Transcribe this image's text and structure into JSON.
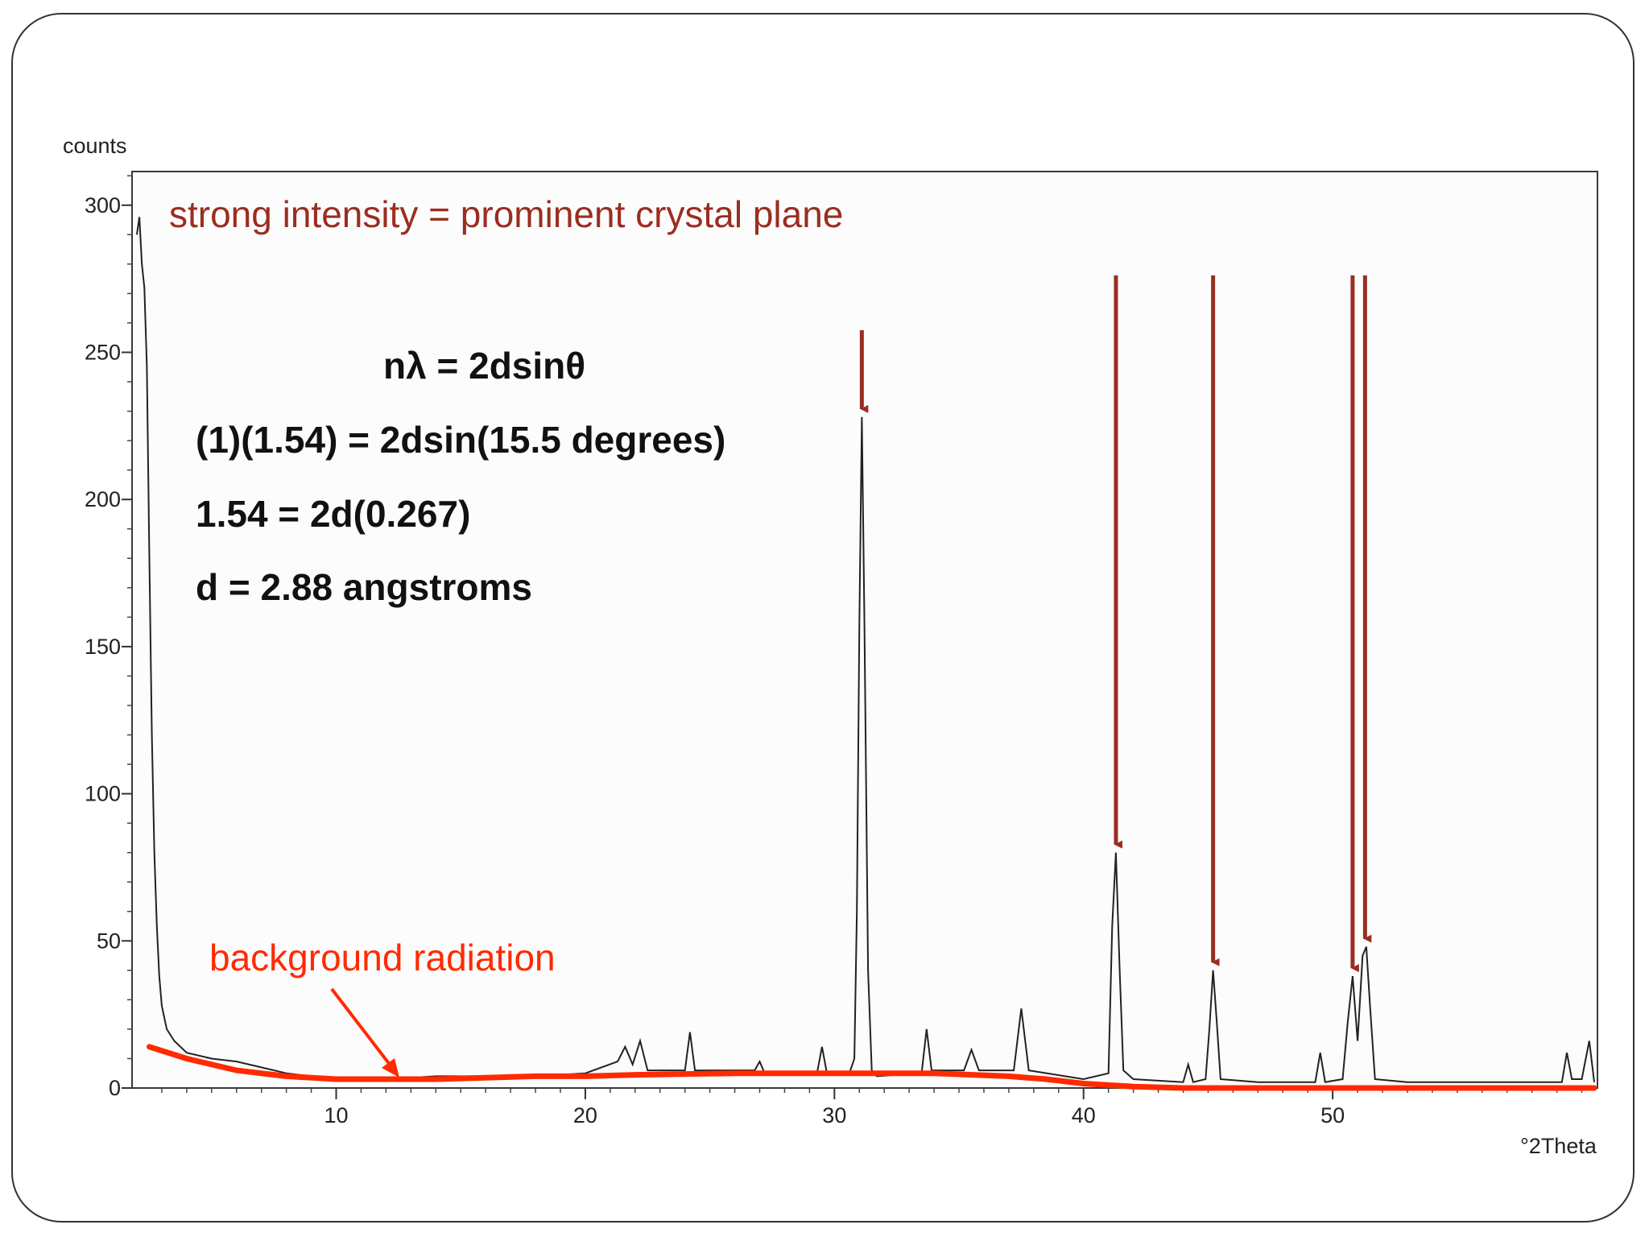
{
  "colors": {
    "annotation": "#9b2d20",
    "background_curve": "#ff2a00",
    "pattern": "#222222",
    "frame": "#333333"
  },
  "annotations": {
    "top_note": "strong intensity = prominent crystal plane",
    "background_label": "background radiation",
    "equations": [
      "nλ = 2dsinθ",
      "(1)(1.54) = 2dsin(15.5 degrees)",
      "1.54 = 2d(0.267)",
      "d = 2.88 angstroms"
    ],
    "arrow_peaks_2theta": [
      31.1,
      41.3,
      45.2,
      50.8,
      51.3
    ]
  },
  "chart_data": {
    "type": "line",
    "title": "",
    "xlabel": "°2Theta",
    "ylabel": "counts",
    "xlim": [
      2,
      60.5
    ],
    "ylim": [
      0,
      315
    ],
    "x_ticks": [
      10,
      20,
      30,
      40,
      50
    ],
    "y_ticks": [
      0,
      50,
      100,
      150,
      200,
      250,
      300
    ],
    "grid": false,
    "series": [
      {
        "x": [
          2.0,
          2.1,
          2.2,
          2.3,
          2.4,
          2.5,
          2.6,
          2.7,
          2.8,
          2.9,
          3.0,
          3.2,
          3.5,
          4.0,
          5.0,
          6.0,
          7.0,
          8.0,
          9.0,
          10.0,
          12.0,
          14.0,
          16.0,
          18.0,
          20.0,
          21.3,
          21.6,
          21.9,
          22.2,
          22.5,
          24.0,
          24.2,
          24.4,
          26.8,
          27.0,
          27.2,
          29.3,
          29.5,
          29.7,
          30.6,
          30.8,
          30.9,
          31.0,
          31.1,
          31.2,
          31.35,
          31.5,
          31.7,
          33.5,
          33.7,
          33.9,
          35.2,
          35.5,
          35.8,
          37.2,
          37.5,
          37.8,
          40.0,
          41.0,
          41.15,
          41.3,
          41.45,
          41.6,
          42.0,
          44.0,
          44.2,
          44.4,
          44.9,
          45.05,
          45.2,
          45.35,
          45.5,
          47.0,
          49.3,
          49.5,
          49.7,
          50.4,
          50.6,
          50.8,
          51.0,
          51.2,
          51.35,
          51.5,
          51.7,
          53.0,
          56.0,
          58.0,
          59.2,
          59.4,
          59.6,
          60.0,
          60.3,
          60.5
        ],
        "y": [
          290,
          296,
          280,
          272,
          245,
          180,
          120,
          80,
          55,
          38,
          28,
          20,
          16,
          12,
          10,
          9,
          7,
          5,
          4,
          3,
          3,
          4,
          4,
          4,
          5,
          9,
          14,
          8,
          16,
          6,
          6,
          19,
          6,
          6,
          9,
          5,
          5,
          14,
          5,
          5,
          10,
          60,
          158,
          228,
          160,
          40,
          6,
          4,
          5,
          20,
          6,
          6,
          13,
          6,
          6,
          27,
          6,
          3,
          5,
          55,
          80,
          40,
          6,
          3,
          2,
          8,
          2,
          3,
          20,
          40,
          22,
          3,
          2,
          2,
          12,
          2,
          3,
          22,
          38,
          16,
          45,
          48,
          28,
          3,
          2,
          2,
          2,
          2,
          12,
          3,
          3,
          16,
          2
        ]
      },
      {
        "name": "background radiation",
        "x": [
          2.5,
          4,
          6,
          8,
          10,
          12,
          14,
          16,
          18,
          20,
          22,
          26,
          30,
          34,
          37,
          38.5,
          40,
          42,
          44,
          48,
          52,
          56,
          60.5
        ],
        "y": [
          14,
          10,
          6,
          4,
          3,
          3,
          3,
          3.5,
          4,
          4,
          4.5,
          5,
          5,
          5,
          4,
          3,
          1.5,
          0.5,
          0,
          0,
          0,
          0,
          0
        ]
      }
    ]
  }
}
